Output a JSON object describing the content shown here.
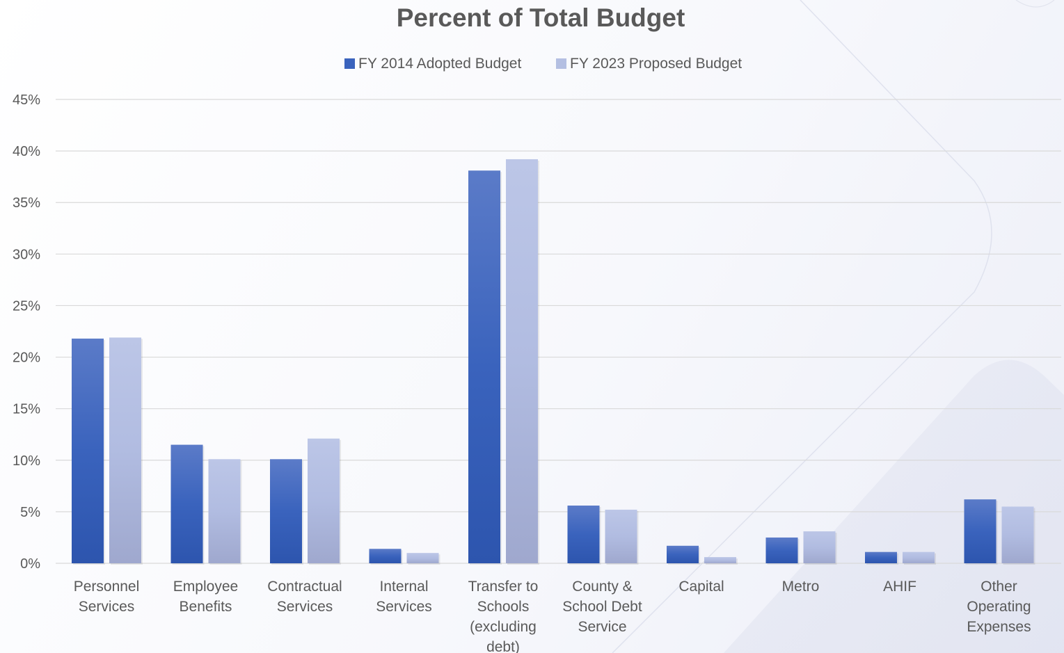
{
  "chart_data": {
    "type": "bar",
    "title": "Percent of Total Budget",
    "xlabel": "",
    "ylabel": "",
    "ylim": [
      0,
      45
    ],
    "yticks": [
      "0%",
      "5%",
      "10%",
      "15%",
      "20%",
      "25%",
      "30%",
      "35%",
      "40%",
      "45%"
    ],
    "tick_step": 5,
    "grid": true,
    "legend_position": "top",
    "categories": [
      [
        "Personnel",
        "Services"
      ],
      [
        "Employee",
        "Benefits"
      ],
      [
        "Contractual",
        "Services"
      ],
      [
        "Internal",
        "Services"
      ],
      [
        "Transfer to",
        "Schools",
        "(excluding",
        "debt)"
      ],
      [
        "County &",
        "School Debt",
        "Service"
      ],
      [
        "Capital"
      ],
      [
        "Metro"
      ],
      [
        "AHIF"
      ],
      [
        "Other",
        "Operating",
        "Expenses"
      ]
    ],
    "series": [
      {
        "name": "FY 2014 Adopted Budget",
        "color": "#3a63bd",
        "values": [
          21.8,
          11.5,
          10.1,
          1.4,
          38.1,
          5.6,
          1.7,
          2.5,
          1.1,
          6.2
        ]
      },
      {
        "name": "FY 2023 Proposed Budget",
        "color": "#b4bfe2",
        "values": [
          21.9,
          10.1,
          12.1,
          1.0,
          39.2,
          5.2,
          0.6,
          3.1,
          1.1,
          5.5
        ]
      }
    ]
  }
}
